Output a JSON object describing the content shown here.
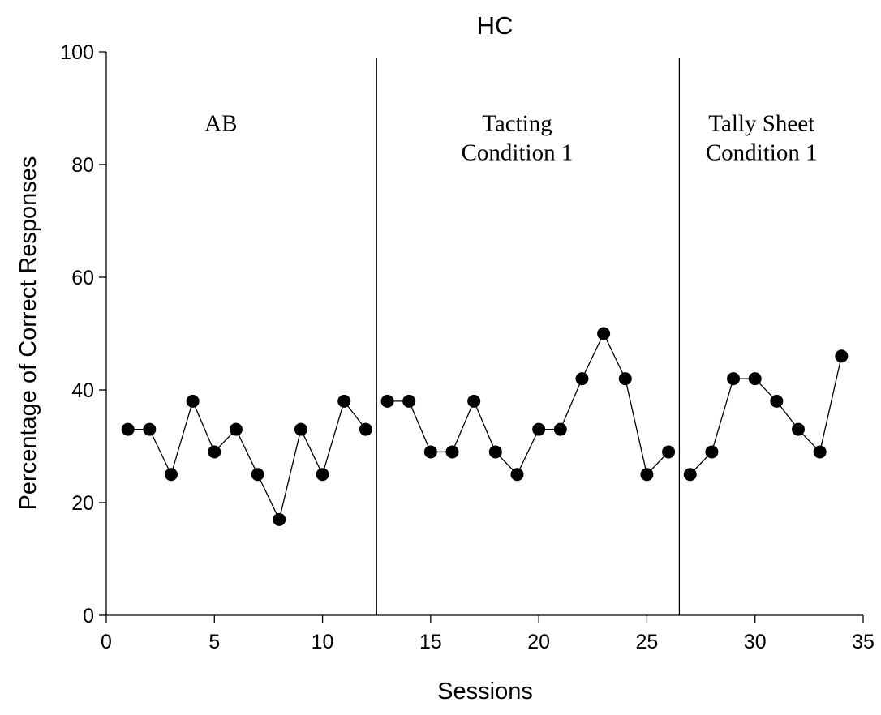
{
  "chart_data": {
    "type": "line",
    "title": "HC",
    "xlabel": "Sessions",
    "ylabel": "Percentage of Correct Responses",
    "xlim": [
      0,
      35
    ],
    "ylim": [
      0,
      100
    ],
    "x_ticks": [
      0,
      5,
      10,
      15,
      20,
      25,
      30,
      35
    ],
    "y_ticks": [
      0,
      20,
      40,
      60,
      80,
      100
    ],
    "grid": false,
    "phase_lines_x": [
      12.5,
      26.5
    ],
    "phase_labels": [
      {
        "lines": [
          "AB"
        ],
        "x": 5.3,
        "y": 86
      },
      {
        "lines": [
          "Tacting",
          "Condition 1"
        ],
        "x": 19,
        "y": 86
      },
      {
        "lines": [
          "Tally Sheet",
          "Condition 1"
        ],
        "x": 30.3,
        "y": 86
      }
    ],
    "series": [
      {
        "x": [
          1,
          2,
          3,
          4,
          5,
          6,
          7,
          8,
          9,
          10,
          11,
          12
        ],
        "y": [
          33,
          33,
          25,
          38,
          29,
          33,
          25,
          17,
          33,
          25,
          38,
          33
        ]
      },
      {
        "x": [
          13,
          14,
          15,
          16,
          17,
          18,
          19,
          20,
          21,
          22,
          23,
          24,
          25,
          26
        ],
        "y": [
          38,
          38,
          29,
          29,
          38,
          29,
          25,
          33,
          33,
          42,
          50,
          42,
          25,
          29
        ]
      },
      {
        "x": [
          27,
          28,
          29,
          30,
          31,
          32,
          33,
          34
        ],
        "y": [
          25,
          29,
          42,
          42,
          38,
          33,
          29,
          46
        ]
      }
    ]
  }
}
